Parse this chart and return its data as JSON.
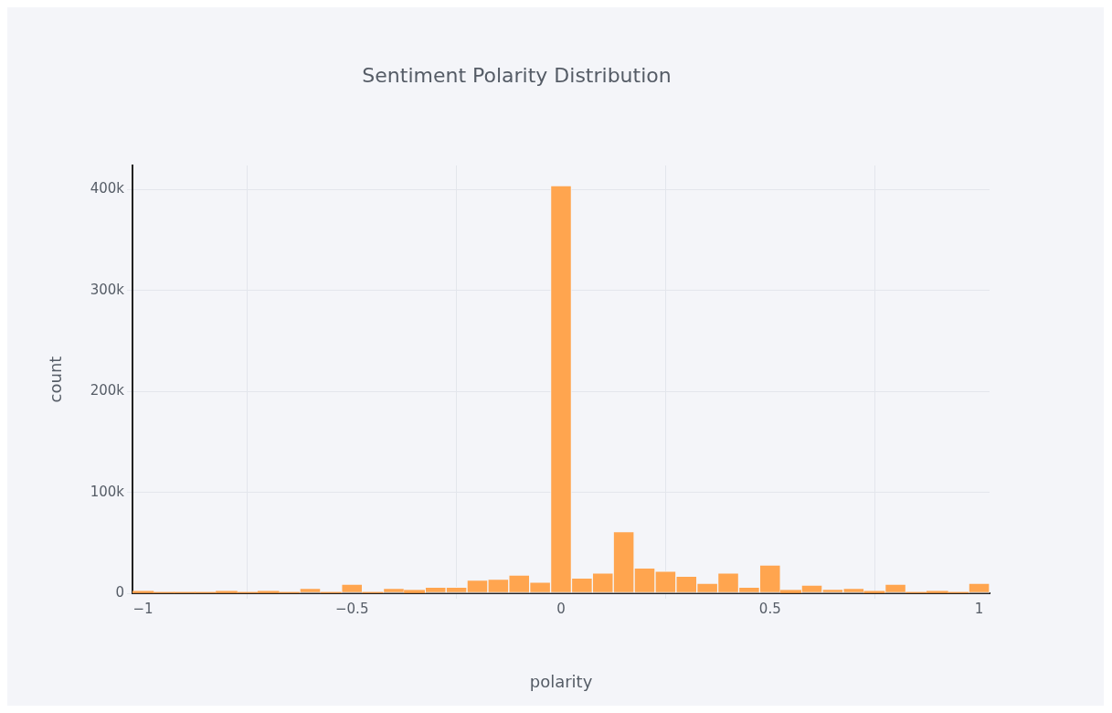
{
  "chart_data": {
    "type": "histogram",
    "title": "Sentiment Polarity Distribution",
    "xlabel": "polarity",
    "ylabel": "count",
    "bins": [
      -1.025,
      -0.975,
      -0.925,
      -0.875,
      -0.825,
      -0.775,
      -0.725,
      -0.675,
      -0.625,
      -0.575,
      -0.525,
      -0.475,
      -0.425,
      -0.375,
      -0.325,
      -0.275,
      -0.225,
      -0.175,
      -0.125,
      -0.075,
      -0.025,
      0.025,
      0.075,
      0.125,
      0.175,
      0.225,
      0.275,
      0.325,
      0.375,
      0.425,
      0.475,
      0.525,
      0.575,
      0.625,
      0.675,
      0.725,
      0.775,
      0.825,
      0.875,
      0.925,
      0.975,
      1.025
    ],
    "values": [
      2000,
      1000,
      1000,
      1000,
      2000,
      1000,
      2000,
      1000,
      5000,
      1000,
      9000,
      1000,
      5000,
      3000,
      6000,
      6000,
      13000,
      14000,
      18000,
      11000,
      404000,
      15000,
      20000,
      61000,
      25000,
      22000,
      17000,
      10000,
      20000,
      6000,
      28000,
      3000,
      8000,
      4000,
      5000,
      2000,
      9000,
      1000,
      2000,
      1000,
      10000
    ],
    "color": "#ffa54f",
    "xlim": [
      -1.025,
      1.025
    ],
    "xticks": [
      {
        "value": -1,
        "label": "−1"
      },
      {
        "value": -0.5,
        "label": "−0.5"
      },
      0,
      0.5,
      1
    ],
    "ylim": [
      0,
      424000
    ],
    "yticks": [
      {
        "value": 0,
        "label": "0"
      },
      {
        "value": 100000,
        "label": "100k"
      },
      {
        "value": 200000,
        "label": "200k"
      },
      {
        "value": 300000,
        "label": "300k"
      },
      {
        "value": 400000,
        "label": "400k"
      }
    ],
    "grid": true
  }
}
